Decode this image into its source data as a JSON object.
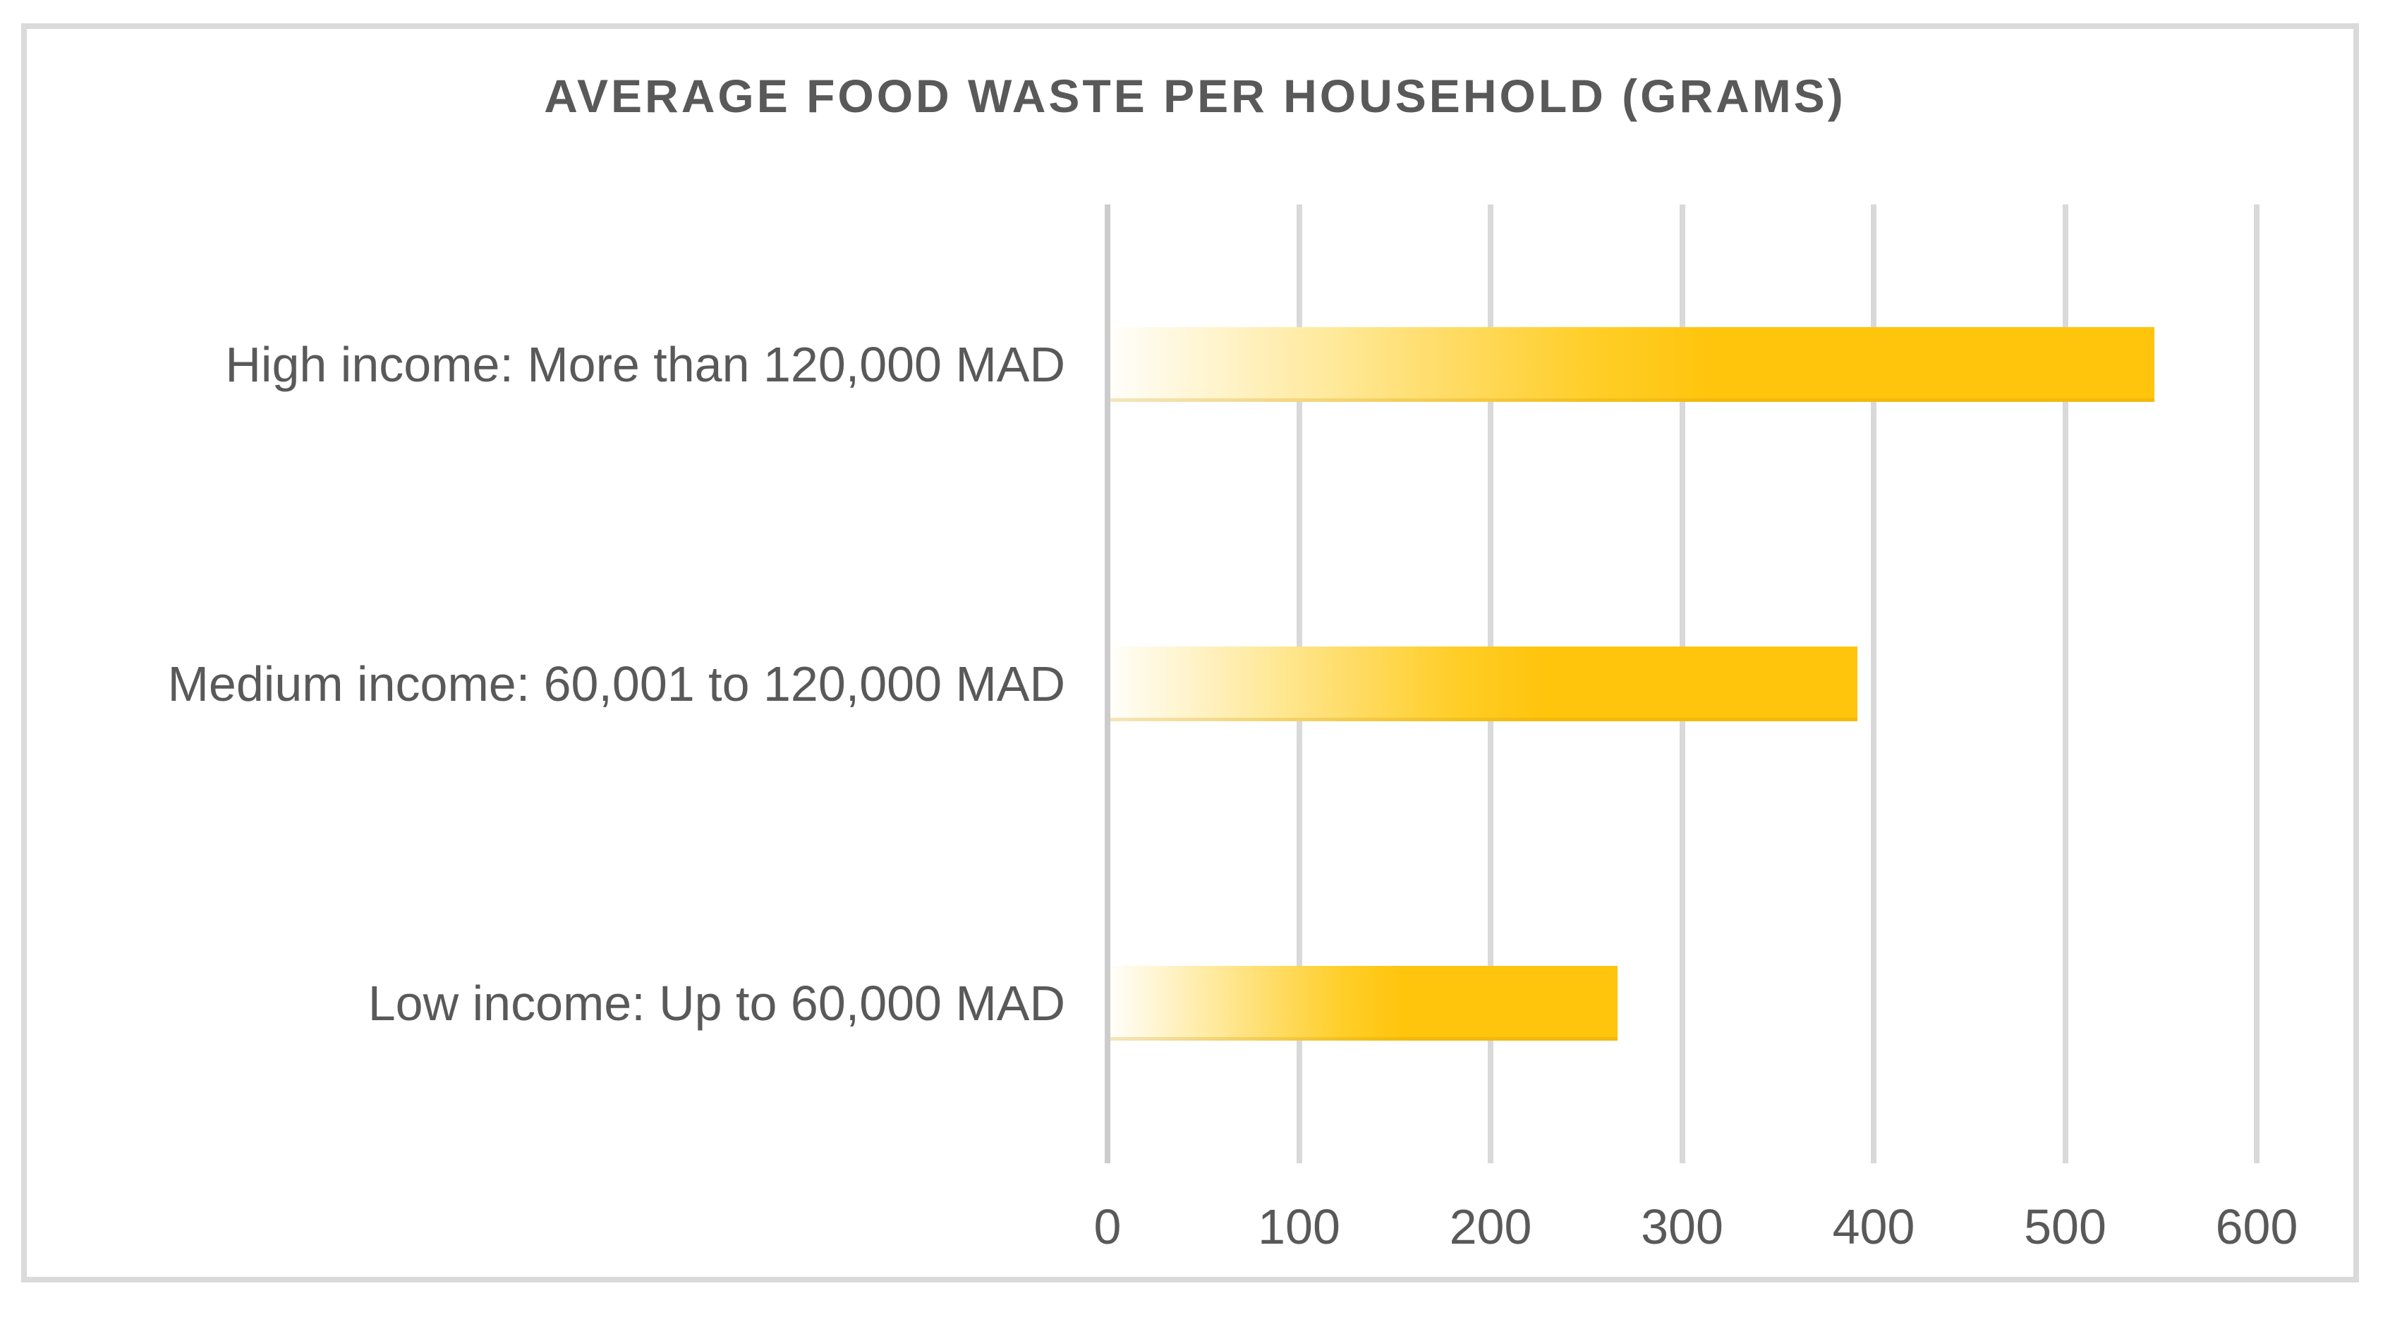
{
  "figure": {
    "title": "AVERAGE FOOD WASTE PER HOUSEHOLD (GRAMS)"
  },
  "chart_data": {
    "type": "bar",
    "orientation": "horizontal",
    "title": "AVERAGE FOOD WASTE PER HOUSEHOLD (GRAMS)",
    "categories": [
      "High income: More than 120,000 MAD",
      "Medium income: 60,001 to 120,000 MAD",
      "Low income: Up to 60,000 MAD"
    ],
    "values": [
      545,
      390,
      265
    ],
    "unit": "grams",
    "xlabel": "",
    "ylabel": "",
    "xlim": [
      0,
      600
    ],
    "x_ticks": [
      0,
      100,
      200,
      300,
      400,
      500,
      600
    ],
    "grid": "vertical-gridlines",
    "legend": "none",
    "colors": {
      "bar_solid": "#FFC40C",
      "bar_gradient_start": "#FFFFFF",
      "text": "#595959",
      "gridline": "#D9D9D9",
      "canvas_border": "#DADADA",
      "background": "#FFFFFF"
    }
  }
}
